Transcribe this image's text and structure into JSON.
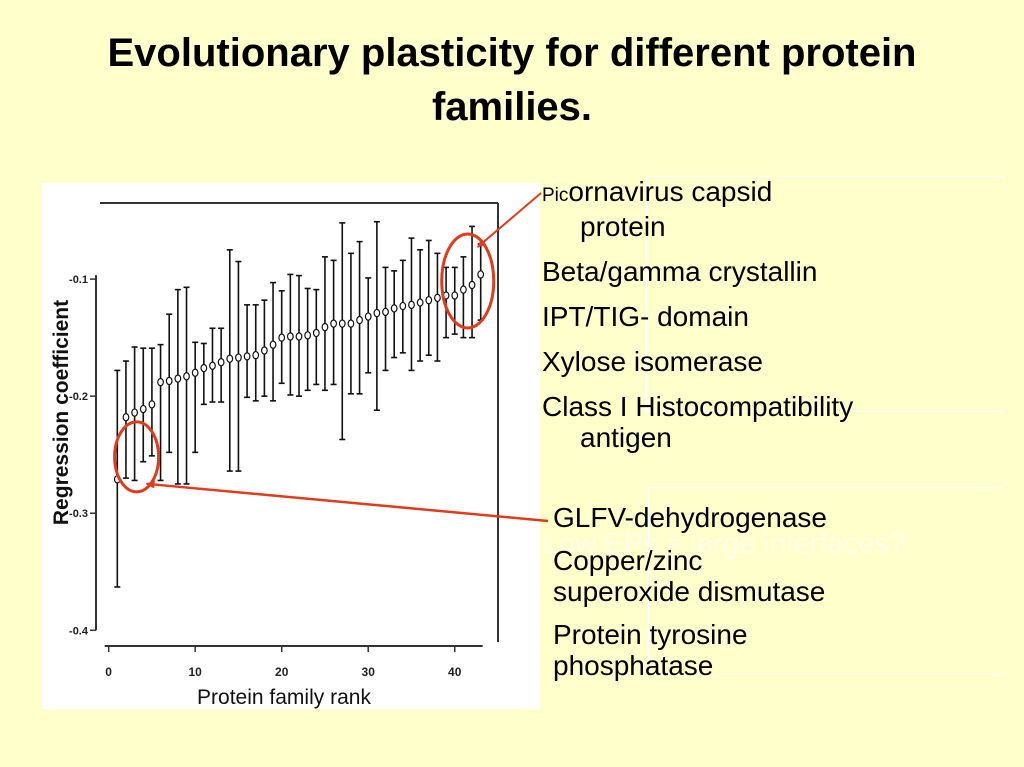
{
  "slide": {
    "title": "Evolutionary plasticity for different protein families."
  },
  "high_plasticity_list": [
    {
      "prefix": "Pic",
      "rest": "ornavirus capsid",
      "line2": "protein"
    },
    {
      "label": "Beta/gamma crystallin"
    },
    {
      "label": "IPT/TIG- domain"
    },
    {
      "label": "Xylose isomerase"
    },
    {
      "label": "Class I Histocompatibility",
      "line2": "antigen"
    }
  ],
  "low_plasticity_list": [
    {
      "label": "GLFV-dehydrogenase"
    },
    {
      "label": "Copper/zinc",
      "line2": "superoxide dismutase"
    },
    {
      "label": "Protein tyrosine",
      "line2": "phosphatase"
    }
  ],
  "ghost_text": "Low EPs = large interfaces?",
  "colors": {
    "background": "#ffffcc",
    "annotation": "#e03c1c",
    "plot_background": "#ffffff"
  },
  "chart_data": {
    "type": "scatter",
    "title": "",
    "xlabel": "Protein family rank",
    "ylabel": "Regression coefficient",
    "xlim": [
      -1,
      45
    ],
    "ylim": [
      -0.41,
      -0.035
    ],
    "xticks": [
      0,
      10,
      20,
      30,
      40
    ],
    "yticks": [
      -0.4,
      -0.3,
      -0.2,
      -0.1
    ],
    "xtick_labels": [
      "0",
      "10",
      "20",
      "30",
      "40"
    ],
    "ytick_labels": [
      "-0.4",
      "-0.3",
      "-0.2",
      "-0.1"
    ],
    "grid": false,
    "legend": "none",
    "error_bars": true,
    "points": [
      {
        "x": 1,
        "y": -0.271,
        "lo": -0.363,
        "hi": -0.178
      },
      {
        "x": 2,
        "y": -0.218,
        "lo": -0.27,
        "hi": -0.17
      },
      {
        "x": 3,
        "y": -0.214,
        "lo": -0.272,
        "hi": -0.158
      },
      {
        "x": 4,
        "y": -0.211,
        "lo": -0.256,
        "hi": -0.159
      },
      {
        "x": 5,
        "y": -0.207,
        "lo": -0.251,
        "hi": -0.159
      },
      {
        "x": 6,
        "y": -0.188,
        "lo": -0.272,
        "hi": -0.156
      },
      {
        "x": 7,
        "y": -0.187,
        "lo": -0.248,
        "hi": -0.13
      },
      {
        "x": 8,
        "y": -0.185,
        "lo": -0.275,
        "hi": -0.109
      },
      {
        "x": 9,
        "y": -0.183,
        "lo": -0.275,
        "hi": -0.107
      },
      {
        "x": 10,
        "y": -0.18,
        "lo": -0.248,
        "hi": -0.154
      },
      {
        "x": 11,
        "y": -0.176,
        "lo": -0.207,
        "hi": -0.155
      },
      {
        "x": 12,
        "y": -0.174,
        "lo": -0.205,
        "hi": -0.142
      },
      {
        "x": 13,
        "y": -0.171,
        "lo": -0.205,
        "hi": -0.142
      },
      {
        "x": 14,
        "y": -0.168,
        "lo": -0.264,
        "hi": -0.075
      },
      {
        "x": 15,
        "y": -0.167,
        "lo": -0.264,
        "hi": -0.085
      },
      {
        "x": 16,
        "y": -0.166,
        "lo": -0.201,
        "hi": -0.122
      },
      {
        "x": 17,
        "y": -0.165,
        "lo": -0.204,
        "hi": -0.122
      },
      {
        "x": 18,
        "y": -0.161,
        "lo": -0.2,
        "hi": -0.118
      },
      {
        "x": 19,
        "y": -0.156,
        "lo": -0.204,
        "hi": -0.103
      },
      {
        "x": 20,
        "y": -0.15,
        "lo": -0.189,
        "hi": -0.11
      },
      {
        "x": 21,
        "y": -0.149,
        "lo": -0.199,
        "hi": -0.096
      },
      {
        "x": 22,
        "y": -0.149,
        "lo": -0.2,
        "hi": -0.097
      },
      {
        "x": 23,
        "y": -0.148,
        "lo": -0.195,
        "hi": -0.108
      },
      {
        "x": 24,
        "y": -0.146,
        "lo": -0.19,
        "hi": -0.109
      },
      {
        "x": 25,
        "y": -0.141,
        "lo": -0.195,
        "hi": -0.081
      },
      {
        "x": 26,
        "y": -0.138,
        "lo": -0.19,
        "hi": -0.084
      },
      {
        "x": 27,
        "y": -0.138,
        "lo": -0.237,
        "hi": -0.052
      },
      {
        "x": 28,
        "y": -0.138,
        "lo": -0.198,
        "hi": -0.078
      },
      {
        "x": 29,
        "y": -0.135,
        "lo": -0.198,
        "hi": -0.068
      },
      {
        "x": 30,
        "y": -0.132,
        "lo": -0.18,
        "hi": -0.099
      },
      {
        "x": 31,
        "y": -0.129,
        "lo": -0.212,
        "hi": -0.051
      },
      {
        "x": 32,
        "y": -0.128,
        "lo": -0.178,
        "hi": -0.09
      },
      {
        "x": 33,
        "y": -0.125,
        "lo": -0.167,
        "hi": -0.093
      },
      {
        "x": 34,
        "y": -0.123,
        "lo": -0.163,
        "hi": -0.084
      },
      {
        "x": 35,
        "y": -0.122,
        "lo": -0.178,
        "hi": -0.065
      },
      {
        "x": 36,
        "y": -0.12,
        "lo": -0.17,
        "hi": -0.075
      },
      {
        "x": 37,
        "y": -0.118,
        "lo": -0.165,
        "hi": -0.067
      },
      {
        "x": 38,
        "y": -0.116,
        "lo": -0.17,
        "hi": -0.078
      },
      {
        "x": 39,
        "y": -0.114,
        "lo": -0.15,
        "hi": -0.09
      },
      {
        "x": 40,
        "y": -0.114,
        "lo": -0.147,
        "hi": -0.09
      },
      {
        "x": 41,
        "y": -0.109,
        "lo": -0.15,
        "hi": -0.081
      },
      {
        "x": 42,
        "y": -0.105,
        "lo": -0.15,
        "hi": -0.055
      },
      {
        "x": 43,
        "y": -0.096,
        "lo": -0.135,
        "hi": -0.07
      }
    ],
    "highlights": [
      {
        "group": "high",
        "x_range": [
          40,
          43
        ]
      },
      {
        "group": "low",
        "x_range": [
          1,
          5
        ]
      }
    ]
  }
}
